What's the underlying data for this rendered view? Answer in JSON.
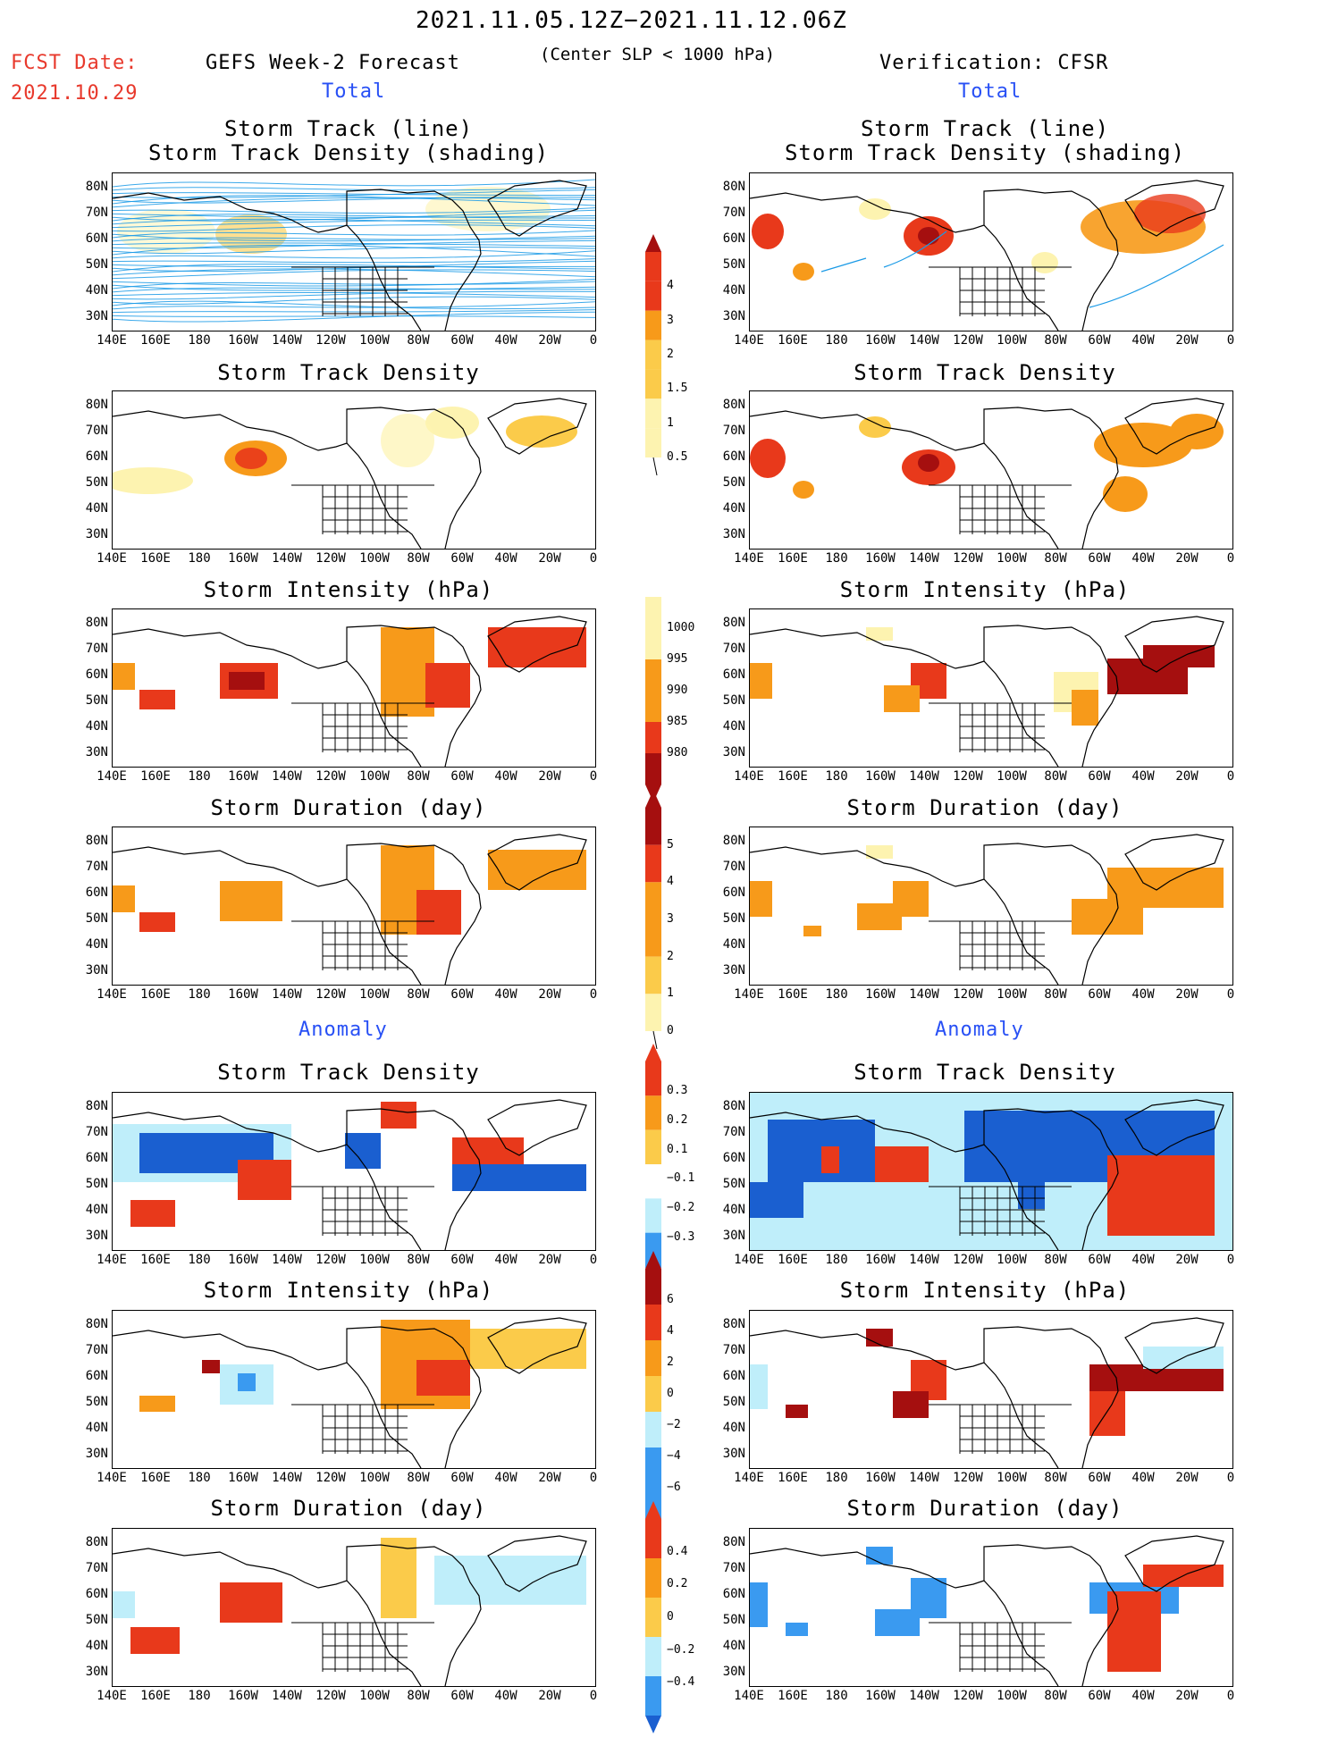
{
  "header": {
    "date_range": "2021.11.05.12Z−2021.11.12.06Z",
    "fcst_label": "FCST Date:",
    "fcst_date": "2021.10.29",
    "left_title": "GEFS Week-2 Forecast",
    "center_note": "(Center SLP < 1000 hPa)",
    "right_title": "Verification: CFSR",
    "total_label_left": "Total",
    "total_label_right": "Total",
    "anomaly_label_left": "Anomaly",
    "anomaly_label_right": "Anomaly"
  },
  "panel_titles": {
    "track_line_1": "Storm Track (line)",
    "track_line_2": "Storm Track Density (shading)",
    "density": "Storm Track Density",
    "intensity": "Storm Intensity (hPa)",
    "duration": "Storm Duration (day)"
  },
  "axes": {
    "lat_labels": [
      "80N",
      "70N",
      "60N",
      "50N",
      "40N",
      "30N"
    ],
    "lon_labels": [
      "140E",
      "160E",
      "180",
      "160W",
      "140W",
      "120W",
      "100W",
      "80W",
      "60W",
      "40W",
      "20W",
      "0"
    ]
  },
  "colorbars": {
    "density_total": [
      "4",
      "3",
      "2",
      "1.5",
      "1",
      "0.5"
    ],
    "intensity_total": [
      "1000",
      "995",
      "990",
      "985",
      "980"
    ],
    "duration_total": [
      "5",
      "4",
      "3",
      "2",
      "1",
      "0"
    ],
    "density_anom": [
      "0.3",
      "0.2",
      "0.1",
      "−0.1",
      "−0.2",
      "−0.3"
    ],
    "intensity_anom": [
      "6",
      "4",
      "2",
      "0",
      "−2",
      "−4",
      "−6"
    ],
    "duration_anom": [
      "0.4",
      "0.2",
      "0",
      "−0.2",
      "−0.4"
    ]
  },
  "colors": {
    "track_line": "#1a9ae6",
    "dark_red": "#a50f0f",
    "red": "#e8391b",
    "orange": "#f79a1a",
    "light_orange": "#fbcb4a",
    "yellow": "#fdf3b0",
    "light_blue": "#bfeefa",
    "blue": "#3a9af0",
    "dark_blue": "#1a5fd0"
  }
}
